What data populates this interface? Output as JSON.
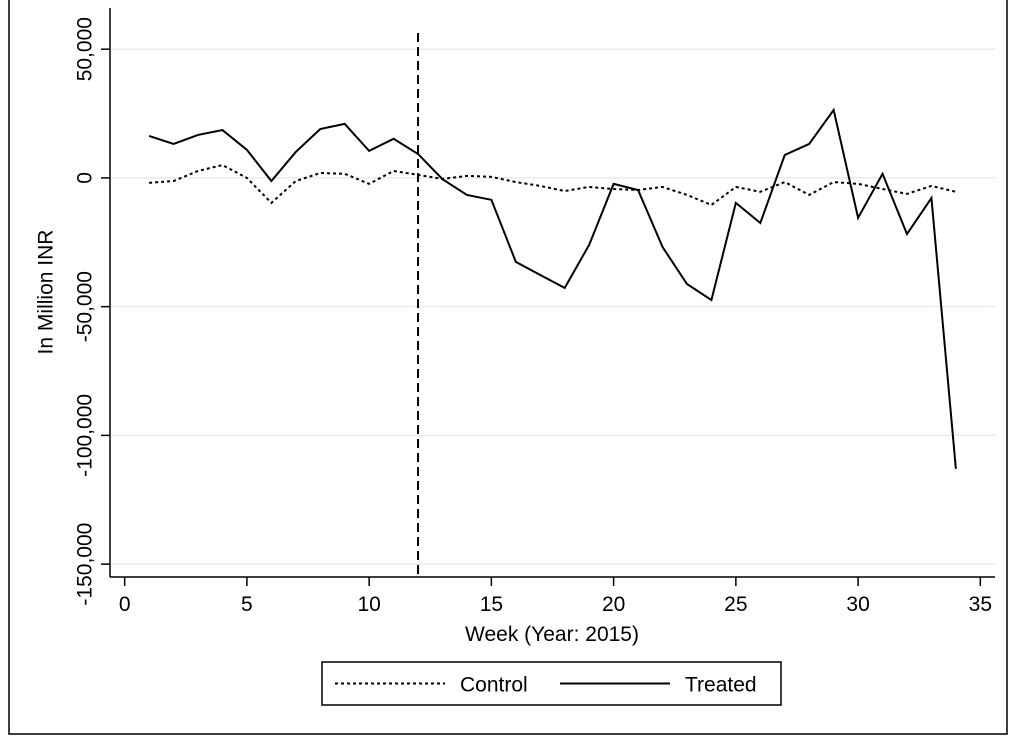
{
  "chart_data": {
    "type": "line",
    "x_label": "Week (Year: 2015)",
    "y_label": "In Million INR",
    "x": [
      1,
      2,
      3,
      4,
      5,
      6,
      7,
      8,
      9,
      10,
      11,
      12,
      13,
      14,
      15,
      16,
      17,
      18,
      19,
      20,
      21,
      22,
      23,
      24,
      25,
      26,
      27,
      28,
      29,
      30,
      31,
      32,
      33,
      34
    ],
    "series": [
      {
        "name": "Control",
        "color": "#000000",
        "line_style": "dotted",
        "values": [
          -1900,
          -1200,
          2700,
          5000,
          0,
          -9700,
          -1200,
          1900,
          1600,
          -2300,
          2700,
          1200,
          -400,
          800,
          400,
          -1600,
          -3100,
          -5100,
          -3500,
          -4300,
          -4700,
          -3500,
          -6600,
          -10500,
          -3500,
          -5400,
          -1600,
          -6600,
          -1600,
          -2300,
          -4300,
          -6200,
          -3100,
          -5400
        ]
      },
      {
        "name": "Treated",
        "color": "#000000",
        "line_style": "solid",
        "values": [
          16300,
          13200,
          16700,
          18600,
          10900,
          -1200,
          10100,
          19000,
          21000,
          10500,
          15200,
          9300,
          -500,
          -6600,
          -8500,
          -32600,
          -37700,
          -42700,
          -26000,
          -2300,
          -4700,
          -26800,
          -41200,
          -47400,
          -9700,
          -17500,
          8900,
          13200,
          26400,
          -15500,
          1600,
          -21800,
          -7800,
          -113000
        ]
      }
    ],
    "xlim": [
      -0.6,
      35.6
    ],
    "xticks": [
      0,
      5,
      10,
      15,
      20,
      25,
      30,
      35
    ],
    "ylim": [
      -155000,
      66000
    ],
    "yticks": [
      {
        "value": -150000,
        "label": "-150,000"
      },
      {
        "value": -100000,
        "label": "-100,000"
      },
      {
        "value": -50000,
        "label": "-50,000"
      },
      0,
      {
        "value": 50000,
        "label": "50,000"
      }
    ],
    "grid": true,
    "vline": 12,
    "legend_position": "bottom"
  }
}
